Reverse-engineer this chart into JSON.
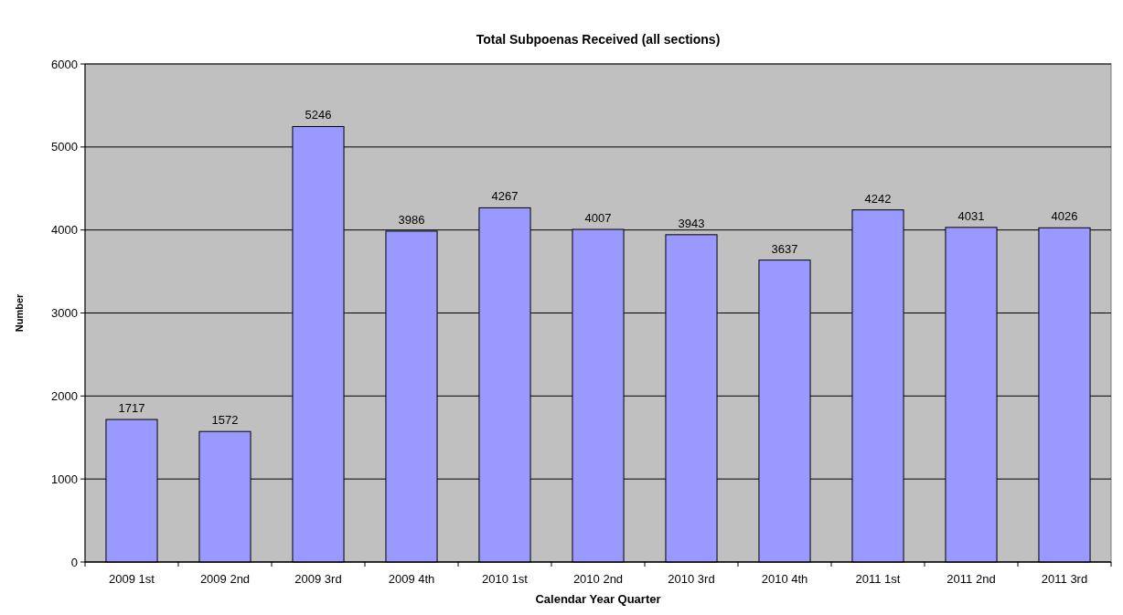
{
  "chart_data": {
    "type": "bar",
    "title": "Total Subpoenas Received (all sections)",
    "xlabel": "Calendar Year Quarter",
    "ylabel": "Number",
    "categories": [
      "2009 1st",
      "2009 2nd",
      "2009 3rd",
      "2009 4th",
      "2010 1st",
      "2010 2nd",
      "2010 3rd",
      "2010 4th",
      "2011 1st",
      "2011 2nd",
      "2011 3rd"
    ],
    "values": [
      1717,
      1572,
      5246,
      3986,
      4267,
      4007,
      3943,
      3637,
      4242,
      4031,
      4026
    ],
    "color": "#9999ff",
    "ylim": [
      0,
      6000
    ],
    "yticks": [
      0,
      1000,
      2000,
      3000,
      4000,
      5000,
      6000
    ],
    "grid": "y",
    "data_labels": true
  }
}
